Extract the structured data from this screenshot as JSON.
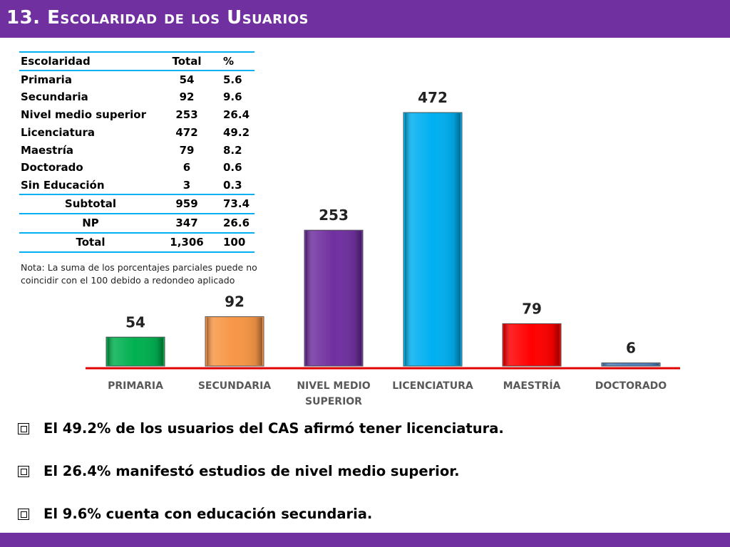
{
  "header": {
    "title": "13. Escolaridad de los Usuarios",
    "bar_color": "#7030a0"
  },
  "table": {
    "headers": [
      "Escolaridad",
      "Total",
      "%"
    ],
    "rows": [
      [
        "Primaria",
        "54",
        "5.6"
      ],
      [
        "Secundaria",
        "92",
        "9.6"
      ],
      [
        "Nivel medio superior",
        "253",
        "26.4"
      ],
      [
        "Licenciatura",
        "472",
        "49.2"
      ],
      [
        "Maestría",
        "79",
        "8.2"
      ],
      [
        "Doctorado",
        "6",
        "0.6"
      ],
      [
        "Sin Educación",
        "3",
        "0.3"
      ]
    ],
    "summary": [
      [
        "Subtotal",
        "959",
        "73.4"
      ],
      [
        "NP",
        "347",
        "26.6"
      ],
      [
        "Total",
        "1,306",
        "100"
      ]
    ],
    "rule_color": "#00b0f0"
  },
  "note": "Nota: La suma de los porcentajes parciales puede no coincidir con el 100 debido a redondeo aplicado",
  "chart_data": {
    "type": "bar",
    "categories": [
      [
        "PRIMARIA"
      ],
      [
        "SECUNDARIA"
      ],
      [
        "NIVEL MEDIO",
        "SUPERIOR"
      ],
      [
        "LICENCIATURA"
      ],
      [
        "MAESTRÍA"
      ],
      [
        "DOCTORADO"
      ]
    ],
    "values": [
      54,
      92,
      253,
      472,
      79,
      6
    ],
    "data_labels": [
      "54",
      "92",
      "253",
      "472",
      "79",
      "6"
    ],
    "colors": [
      "#00b050",
      "#f79646",
      "#7030a0",
      "#00b0f0",
      "#ff0000",
      "#4f81bd"
    ],
    "axis_color": "#e00000",
    "title": "",
    "xlabel": "",
    "ylabel": "",
    "grid": false,
    "legend": false
  },
  "bullets": [
    "El 49.2% de los usuarios del CAS afirmó tener licenciatura.",
    "El 26.4% manifestó estudios de nivel medio superior.",
    "El 9.6% cuenta con educación secundaria."
  ]
}
